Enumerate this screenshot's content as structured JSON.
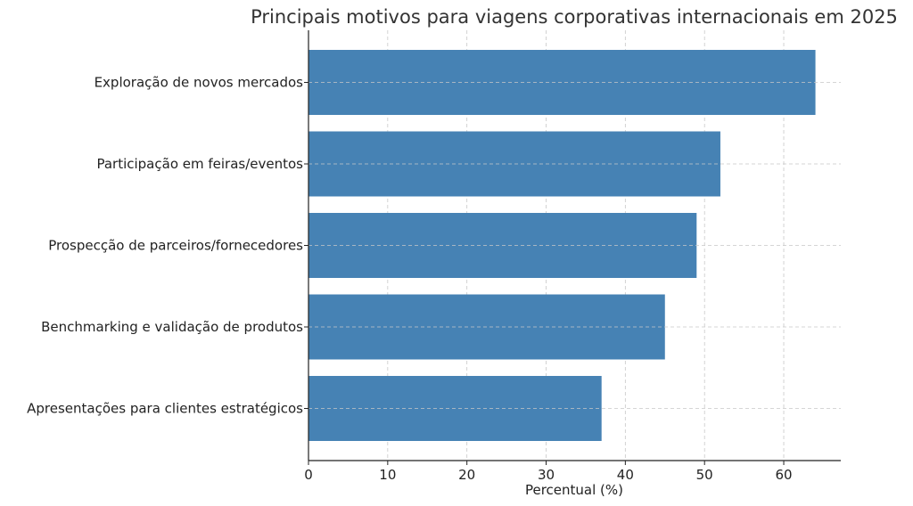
{
  "chart_data": {
    "type": "bar",
    "orientation": "horizontal",
    "title": "Principais motivos para viagens corporativas internacionais em 2025",
    "xlabel": "Percentual (%)",
    "ylabel": "",
    "categories": [
      "Exploração de novos mercados",
      "Participação em feiras/eventos",
      "Prospecção de parceiros/fornecedores",
      "Benchmarking e validação de produtos",
      "Apresentações para clientes estratégicos"
    ],
    "values": [
      64,
      52,
      49,
      45,
      37
    ],
    "xlim": [
      0,
      67.2
    ],
    "xticks": [
      "0",
      "10",
      "20",
      "30",
      "40",
      "50",
      "60"
    ],
    "grid": true,
    "bar_color": "#4682b4"
  }
}
